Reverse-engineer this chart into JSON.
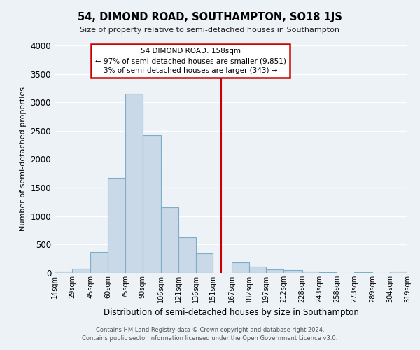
{
  "title": "54, DIMOND ROAD, SOUTHAMPTON, SO18 1JS",
  "subtitle": "Size of property relative to semi-detached houses in Southampton",
  "xlabel": "Distribution of semi-detached houses by size in Southampton",
  "ylabel": "Number of semi-detached properties",
  "bar_color": "#c9d9e8",
  "bar_edge_color": "#7daec8",
  "background_color": "#edf2f7",
  "grid_color": "#ffffff",
  "vline_x": 158,
  "vline_color": "#cc0000",
  "bin_edges": [
    14,
    29,
    45,
    60,
    75,
    90,
    106,
    121,
    136,
    151,
    167,
    182,
    197,
    212,
    228,
    243,
    258,
    273,
    289,
    304,
    319
  ],
  "bin_heights": [
    30,
    70,
    370,
    1680,
    3150,
    2430,
    1160,
    630,
    340,
    0,
    180,
    110,
    60,
    50,
    30,
    10,
    0,
    10,
    0,
    20
  ],
  "tick_labels": [
    "14sqm",
    "29sqm",
    "45sqm",
    "60sqm",
    "75sqm",
    "90sqm",
    "106sqm",
    "121sqm",
    "136sqm",
    "151sqm",
    "167sqm",
    "182sqm",
    "197sqm",
    "212sqm",
    "228sqm",
    "243sqm",
    "258sqm",
    "273sqm",
    "289sqm",
    "304sqm",
    "319sqm"
  ],
  "ylim": [
    0,
    4000
  ],
  "yticks": [
    0,
    500,
    1000,
    1500,
    2000,
    2500,
    3000,
    3500,
    4000
  ],
  "box_title": "54 DIMOND ROAD: 158sqm",
  "box_line1": "← 97% of semi-detached houses are smaller (9,851)",
  "box_line2": "3% of semi-detached houses are larger (343) →",
  "box_color": "#ffffff",
  "box_edge_color": "#cc0000",
  "footer1": "Contains HM Land Registry data © Crown copyright and database right 2024.",
  "footer2": "Contains public sector information licensed under the Open Government Licence v3.0."
}
